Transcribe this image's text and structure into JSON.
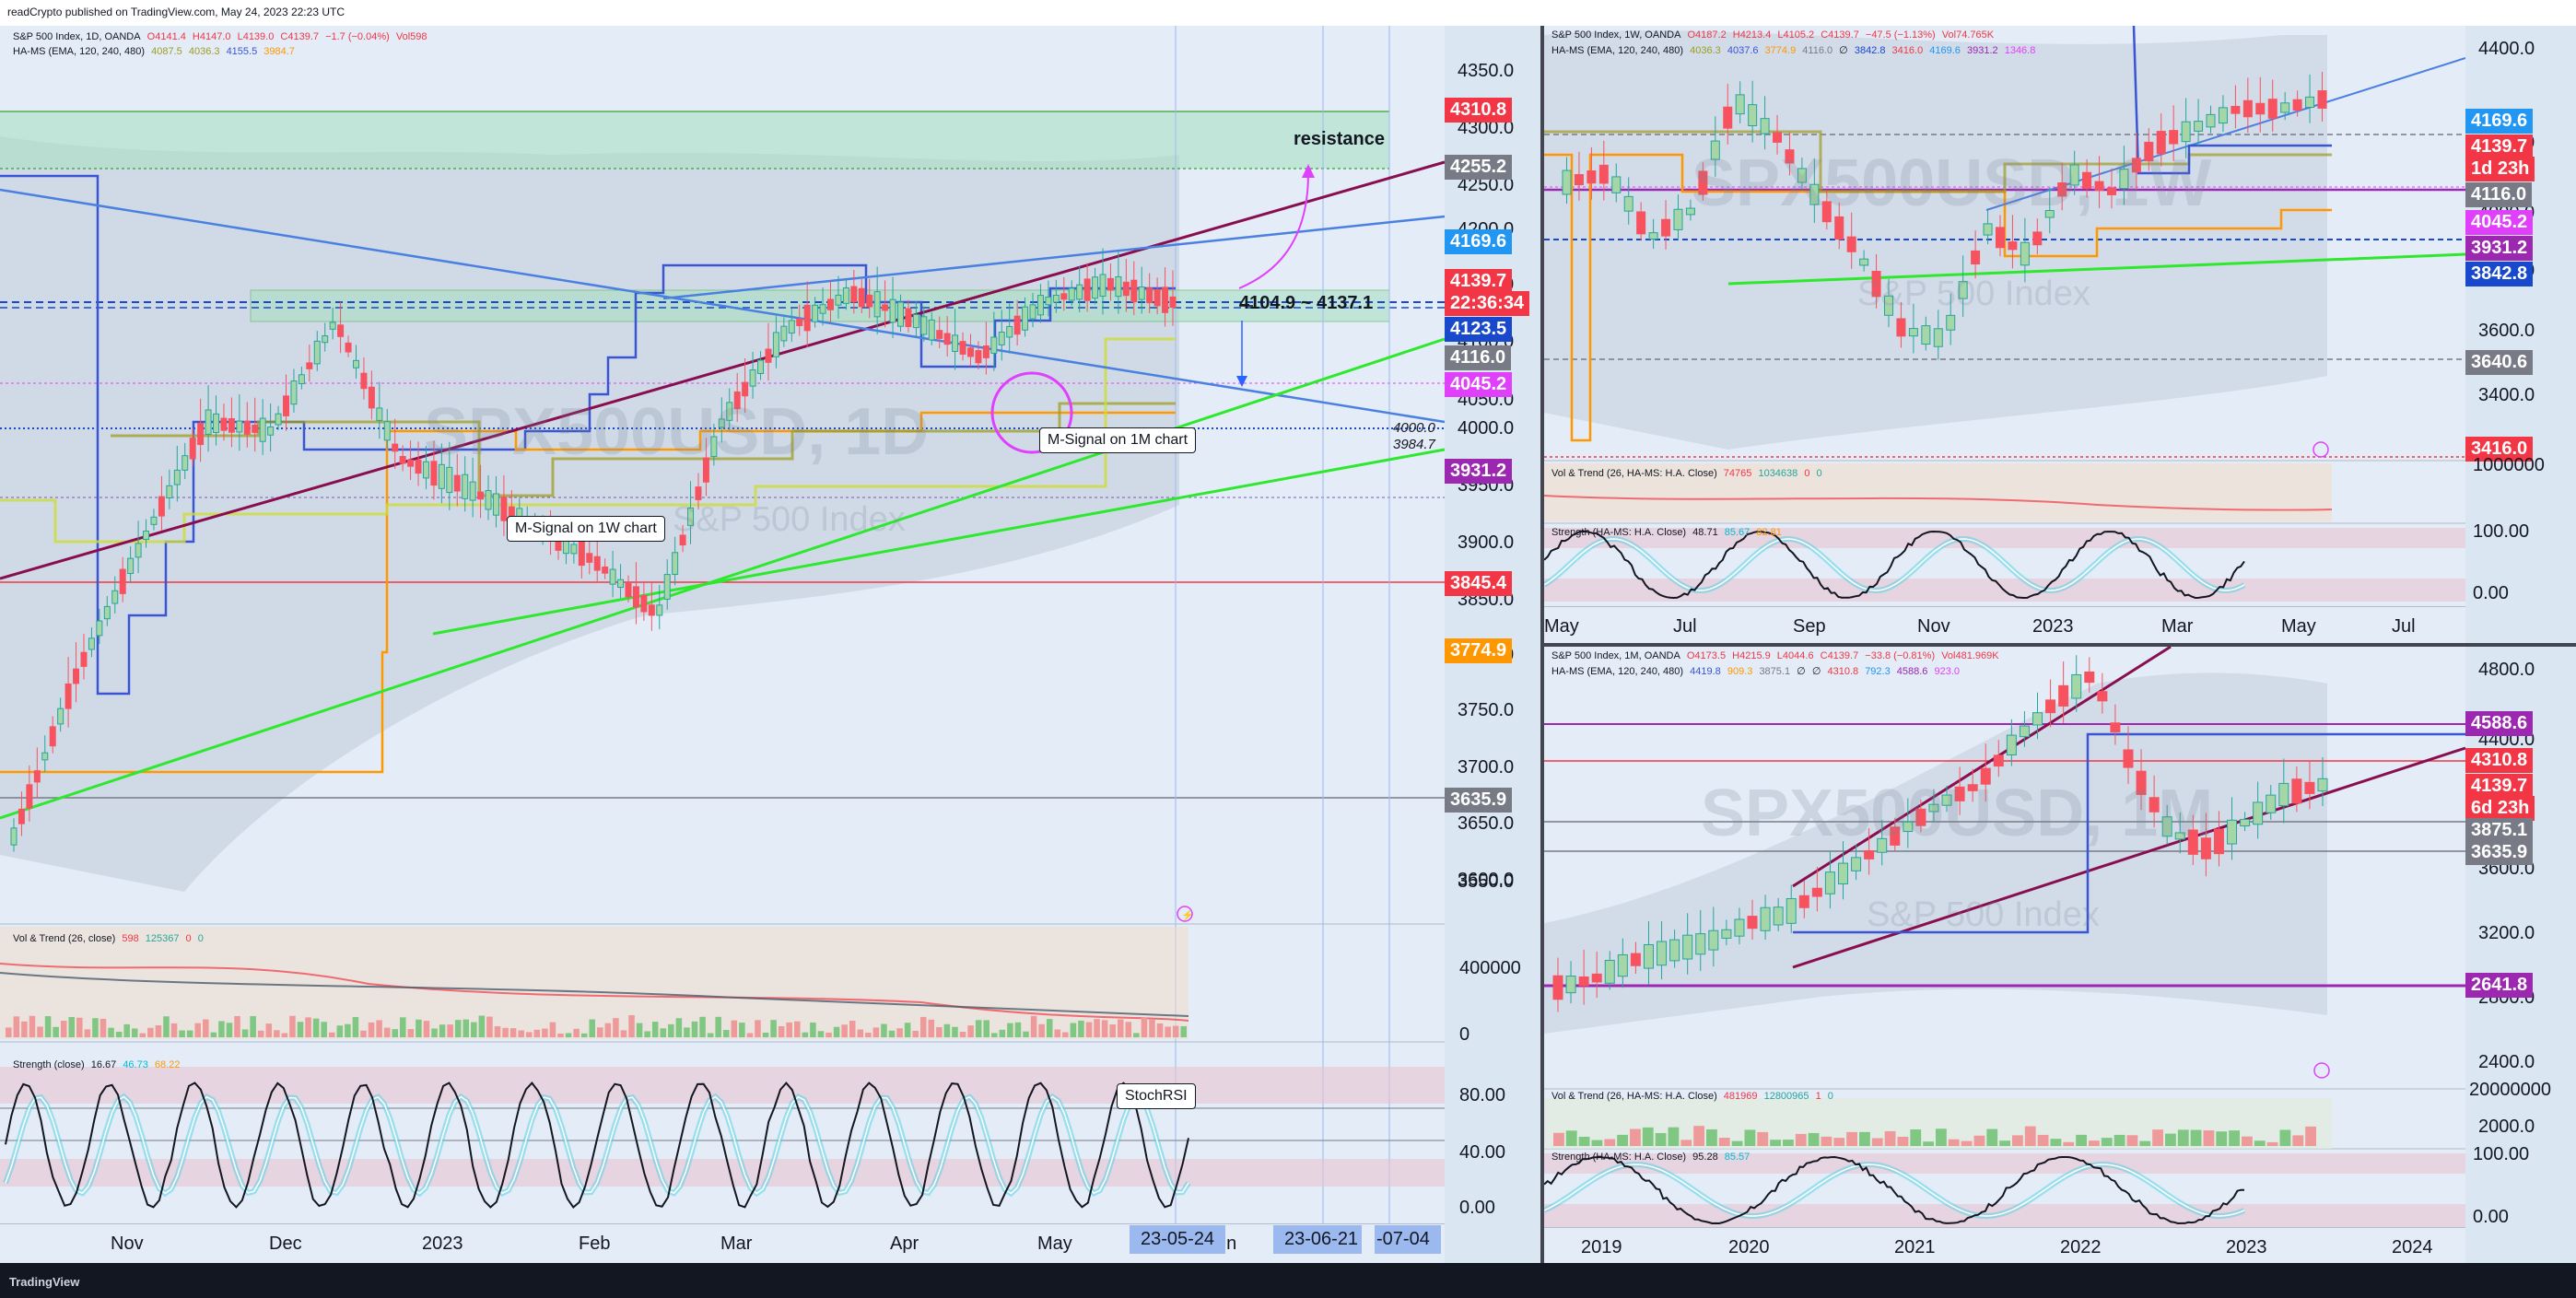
{
  "header": {
    "text": "readCrypto published on TradingView.com, May 24, 2023 22:23 UTC"
  },
  "footer": {
    "logo": "TradingView"
  },
  "left": {
    "legend1": {
      "name": "S&P 500 Index, 1D, OANDA",
      "o": "O4141.4",
      "h": "H4147.0",
      "l": "L4139.0",
      "c": "C4139.7",
      "chg": "−1.7 (−0.04%)",
      "vol": "Vol598"
    },
    "legend2": {
      "name": "HA-MS (EMA, 120, 240, 480)",
      "v1": "4087.5",
      "v2": "4036.3",
      "v3": "4155.5",
      "v4": "3984.7"
    },
    "watermark": "SPX500USD, 1D",
    "watermark_sub": "S&P 500 Index",
    "resistance": "resistance",
    "range_label": "4104.9 ~ 4137.1",
    "note_1w": "M-Signal on 1W chart",
    "note_1m": "M-Signal on 1M chart",
    "note_stoch": "StochRSI",
    "small_4000": "4000.0",
    "small_3984": "3984.7",
    "price_ticks": [
      "4350.0",
      "4300.0",
      "4250.0",
      "4200.0",
      "4150.0",
      "4100.0",
      "4050.0",
      "4000.0",
      "3950.0",
      "3900.0",
      "3850.0",
      "3800.0",
      "3750.0",
      "3700.0",
      "3650.0",
      "3600.0",
      "3550.0"
    ],
    "labels": [
      {
        "text": "4310.8",
        "color": "#f23645"
      },
      {
        "text": "4255.2",
        "color": "#787b86"
      },
      {
        "text": "4169.6",
        "color": "#2196f3"
      },
      {
        "text": "4139.7",
        "color": "#f23645"
      },
      {
        "text": "22:36:34",
        "color": "#f23645"
      },
      {
        "text": "4123.5",
        "color": "#1848cc"
      },
      {
        "text": "4116.0",
        "color": "#787b86"
      },
      {
        "text": "4045.2",
        "color": "#e040fb"
      },
      {
        "text": "3931.2",
        "color": "#9c27b0"
      },
      {
        "text": "3845.4",
        "color": "#f23645"
      },
      {
        "text": "3774.9",
        "color": "#ff9800"
      },
      {
        "text": "3635.9",
        "color": "#787b86"
      }
    ],
    "vol_legend": {
      "name": "Vol & Trend (26, close)",
      "a": "598",
      "b": "125367",
      "c": "0",
      "d": "0"
    },
    "vol_ticks": [
      "400000",
      "0"
    ],
    "str_legend": {
      "name": "Strength (close)",
      "a": "16.67",
      "b": "46.73",
      "c": "68.22"
    },
    "str_ticks": [
      "80.00",
      "40.00",
      "0.00"
    ],
    "x_labels": [
      "Nov",
      "Dec",
      "2023",
      "Feb",
      "Mar",
      "Apr",
      "May",
      "Jun"
    ],
    "cursor_date": "23-05-24",
    "date_range": "23-06-21",
    "date_range_b": "-07-04"
  },
  "right_top": {
    "legend1": {
      "name": "S&P 500 Index, 1W, OANDA",
      "o": "O4187.2",
      "h": "H4213.4",
      "l": "L4105.2",
      "c": "C4139.7",
      "chg": "−47.5 (−1.13%)",
      "vol": "Vol74.765K"
    },
    "legend2": {
      "name": "HA-MS (EMA, 120, 240, 480)",
      "v1": "4036.3",
      "v2": "4037.6",
      "v3": "3774.9",
      "v4": "4116.0",
      "v5": "∅",
      "v6": "3842.8",
      "v7": "3416.0",
      "v8": "4169.6",
      "v9": "3931.2",
      "v10": "1346.8"
    },
    "watermark": "SPX500USD, 1W",
    "watermark_sub": "S&P 500 Index",
    "price_ticks": [
      "4400.0",
      "4200.0",
      "4000.0",
      "3800.0",
      "3600.0",
      "3400.0"
    ],
    "labels": [
      {
        "text": "4169.6",
        "color": "#2196f3"
      },
      {
        "text": "4139.7",
        "color": "#f23645"
      },
      {
        "text": "1d 23h",
        "color": "#f23645"
      },
      {
        "text": "4116.0",
        "color": "#787b86"
      },
      {
        "text": "4045.2",
        "color": "#e040fb"
      },
      {
        "text": "3931.2",
        "color": "#9c27b0"
      },
      {
        "text": "3842.8",
        "color": "#1848cc"
      },
      {
        "text": "3640.6",
        "color": "#787b86"
      },
      {
        "text": "3416.0",
        "color": "#f23645"
      }
    ],
    "vol_legend": {
      "name": "Vol & Trend (26, HA-MS: H.A. Close)",
      "a": "74765",
      "b": "1034638",
      "c": "0",
      "d": "0"
    },
    "vol_ticks": [
      "1000000"
    ],
    "str_legend": {
      "name": "Strength (HA-MS: H.A. Close)",
      "a": "48.71",
      "b": "85.67",
      "c": "82.81"
    },
    "str_ticks": [
      "100.00",
      "0.00"
    ],
    "x_labels": [
      "May",
      "Jul",
      "Sep",
      "Nov",
      "2023",
      "Mar",
      "May",
      "Jul"
    ]
  },
  "right_bottom": {
    "legend1": {
      "name": "S&P 500 Index, 1M, OANDA",
      "o": "O4173.5",
      "h": "H4215.9",
      "l": "L4044.6",
      "c": "C4139.7",
      "chg": "−33.8 (−0.81%)",
      "vol": "Vol481.969K"
    },
    "legend2": {
      "name": "HA-MS (EMA, 120, 240, 480)",
      "v1": "4419.8",
      "v2": "909.3",
      "v3": "3875.1",
      "v4": "∅",
      "v5": "∅",
      "v6": "4310.8",
      "v7": "792.3",
      "v8": "4588.6",
      "v9": "923.0"
    },
    "watermark": "SPX500USD, 1M",
    "watermark_sub": "S&P 500 Index",
    "price_ticks": [
      "4800.0",
      "4400.0",
      "4000.0",
      "3600.0",
      "3200.0",
      "2800.0",
      "2400.0",
      "2000.0"
    ],
    "labels": [
      {
        "text": "4588.6",
        "color": "#9c27b0"
      },
      {
        "text": "4310.8",
        "color": "#f23645"
      },
      {
        "text": "4139.7",
        "color": "#f23645"
      },
      {
        "text": "6d 23h",
        "color": "#f23645"
      },
      {
        "text": "3875.1",
        "color": "#787b86"
      },
      {
        "text": "3635.9",
        "color": "#787b86"
      },
      {
        "text": "2641.8",
        "color": "#9c27b0"
      }
    ],
    "vol_legend": {
      "name": "Vol & Trend (26, HA-MS: H.A. Close)",
      "a": "481969",
      "b": "12800965",
      "c": "1",
      "d": "0"
    },
    "vol_ticks": [
      "20000000"
    ],
    "str_legend": {
      "name": "Strength (HA-MS: H.A. Close)",
      "a": "95.28",
      "b": "85.57",
      "c": ""
    },
    "str_ticks": [
      "100.00",
      "0.00"
    ],
    "x_labels": [
      "2019",
      "2020",
      "2021",
      "2022",
      "2023",
      "2024"
    ]
  },
  "colors": {
    "bg": "#e3ecf7",
    "up": "#26a69a",
    "down": "#ef5350",
    "red_candle": "#f7525f",
    "frame": "#131722"
  },
  "icons": [
    "lightning-icon",
    "tradingview-logo"
  ]
}
